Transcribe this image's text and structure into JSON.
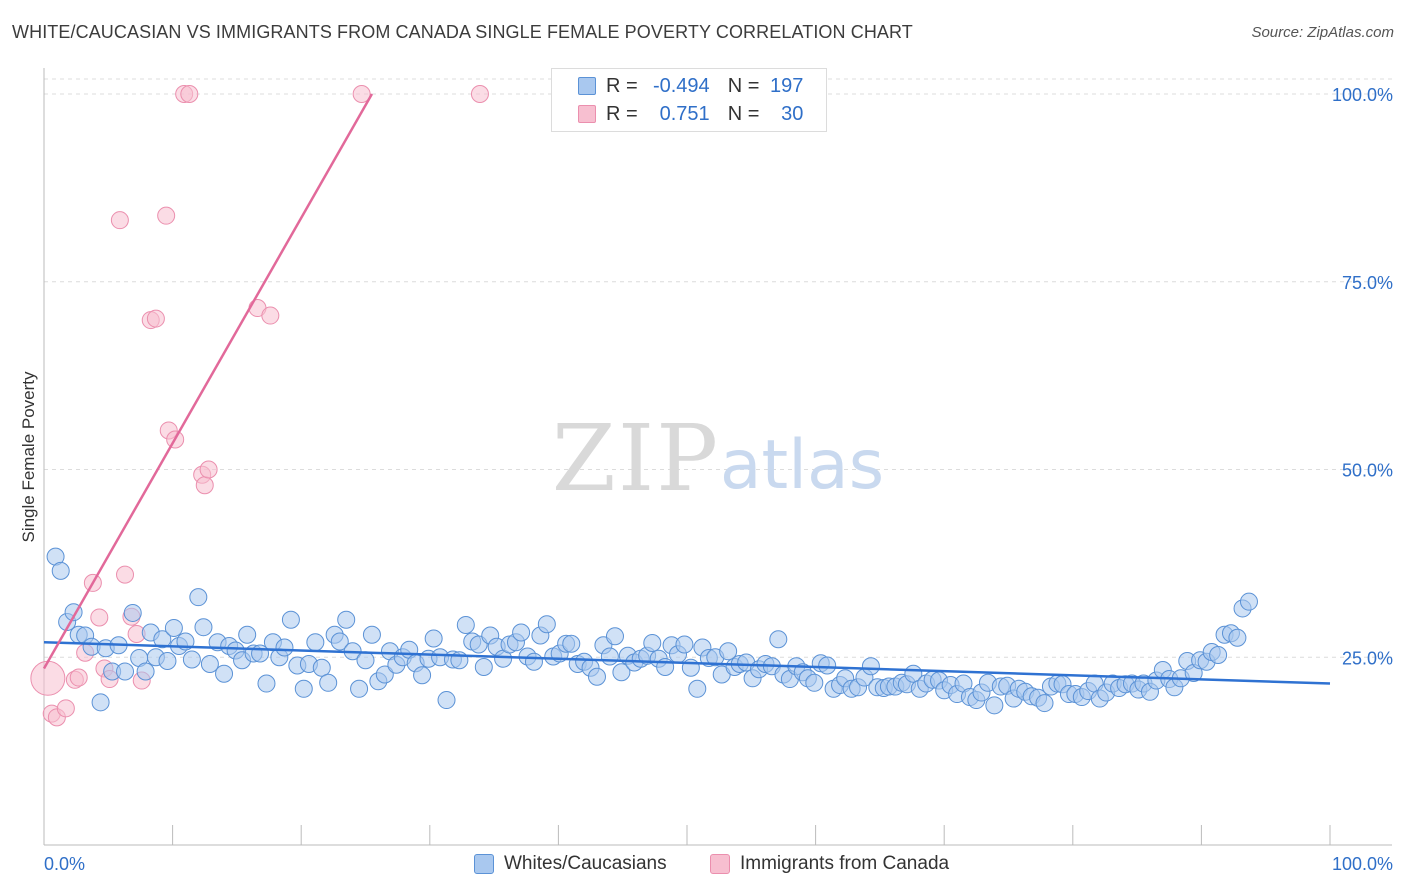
{
  "title": "WHITE/CAUCASIAN VS IMMIGRANTS FROM CANADA SINGLE FEMALE POVERTY CORRELATION CHART",
  "source": "Source: ZipAtlas.com",
  "watermark": {
    "zip": "ZIP",
    "atlas": "atlas"
  },
  "colors": {
    "blue_fill": "#a9c8ef",
    "blue_stroke": "#5b92d6",
    "blue_line": "#2f72d2",
    "pink_fill": "#f7bfd0",
    "pink_stroke": "#eb8fae",
    "pink_line": "#e2699a",
    "axis_text": "#2f6fc8"
  },
  "legend": {
    "r_label": "R =",
    "n_label": "N =",
    "rows": [
      {
        "name": "Whites/Caucasians",
        "r": "-0.494",
        "n": "197"
      },
      {
        "name": "Immigrants from Canada",
        "r": "0.751",
        "n": "30"
      }
    ]
  },
  "chart_data": {
    "type": "scatter",
    "title": "WHITE/CAUCASIAN VS IMMIGRANTS FROM CANADA SINGLE FEMALE POVERTY CORRELATION CHART",
    "xlabel": "",
    "ylabel": "Single Female Poverty",
    "xlim": [
      0,
      100
    ],
    "ylim": [
      0,
      102
    ],
    "x_tick_labels": [
      "0.0%",
      "100.0%"
    ],
    "y_ticks": [
      25,
      50,
      75,
      100
    ],
    "y_tick_labels": [
      "25.0%",
      "50.0%",
      "75.0%",
      "100.0%"
    ],
    "grid": true,
    "legend_position": "bottom-center",
    "series": [
      {
        "name": "Whites/Caucasians",
        "r": -0.494,
        "n": 197,
        "trend": {
          "x": [
            0,
            100
          ],
          "y": [
            27.0,
            21.5
          ]
        },
        "points": [
          [
            0.9,
            38.4
          ],
          [
            1.3,
            36.5
          ],
          [
            1.8,
            29.7
          ],
          [
            2.3,
            31
          ],
          [
            2.7,
            28
          ],
          [
            3.2,
            27.9
          ],
          [
            3.7,
            26.4
          ],
          [
            4.4,
            19
          ],
          [
            4.8,
            26.2
          ],
          [
            5.3,
            23.1
          ],
          [
            5.8,
            26.6
          ],
          [
            6.3,
            23.1
          ],
          [
            6.9,
            30.9
          ],
          [
            7.4,
            24.9
          ],
          [
            7.9,
            23.1
          ],
          [
            8.3,
            28.3
          ],
          [
            8.7,
            25
          ],
          [
            9.2,
            27.4
          ],
          [
            9.6,
            24.5
          ],
          [
            10.1,
            28.9
          ],
          [
            10.5,
            26.5
          ],
          [
            11,
            27.1
          ],
          [
            11.5,
            24.7
          ],
          [
            12,
            33
          ],
          [
            12.4,
            29
          ],
          [
            12.9,
            24.1
          ],
          [
            13.5,
            27
          ],
          [
            14,
            22.8
          ],
          [
            14.4,
            26.5
          ],
          [
            14.9,
            25.9
          ],
          [
            15.4,
            24.6
          ],
          [
            15.8,
            28
          ],
          [
            16.3,
            25.5
          ],
          [
            16.8,
            25.5
          ],
          [
            17.3,
            21.5
          ],
          [
            17.8,
            27
          ],
          [
            18.3,
            25
          ],
          [
            18.7,
            26.3
          ],
          [
            19.2,
            30
          ],
          [
            19.7,
            23.9
          ],
          [
            20.2,
            20.8
          ],
          [
            20.6,
            24.1
          ],
          [
            21.1,
            27
          ],
          [
            21.6,
            23.6
          ],
          [
            22.1,
            21.6
          ],
          [
            22.6,
            28
          ],
          [
            23,
            27.1
          ],
          [
            23.5,
            30
          ],
          [
            24,
            25.8
          ],
          [
            24.5,
            20.8
          ],
          [
            25,
            24.6
          ],
          [
            25.5,
            28
          ],
          [
            26,
            21.8
          ],
          [
            26.5,
            22.7
          ],
          [
            26.9,
            25.8
          ],
          [
            27.4,
            24
          ],
          [
            27.9,
            25
          ],
          [
            28.4,
            26
          ],
          [
            28.9,
            24.2
          ],
          [
            29.4,
            22.6
          ],
          [
            29.9,
            24.8
          ],
          [
            30.3,
            27.5
          ],
          [
            30.8,
            25
          ],
          [
            31.3,
            19.3
          ],
          [
            31.8,
            24.7
          ],
          [
            32.3,
            24.6
          ],
          [
            32.8,
            29.3
          ],
          [
            33.3,
            27.1
          ],
          [
            33.8,
            26.7
          ],
          [
            34.2,
            23.7
          ],
          [
            34.7,
            27.9
          ],
          [
            35.2,
            26.4
          ],
          [
            35.7,
            24.8
          ],
          [
            36.2,
            26.7
          ],
          [
            36.7,
            27
          ],
          [
            37.1,
            28.3
          ],
          [
            37.6,
            25.1
          ],
          [
            38.1,
            24.4
          ],
          [
            38.6,
            27.9
          ],
          [
            39.1,
            29.4
          ],
          [
            39.6,
            25.1
          ],
          [
            40.1,
            25.5
          ],
          [
            40.6,
            26.8
          ],
          [
            41,
            26.8
          ],
          [
            41.5,
            24.1
          ],
          [
            42,
            24.4
          ],
          [
            42.5,
            23.6
          ],
          [
            43,
            22.4
          ],
          [
            43.5,
            26.6
          ],
          [
            44,
            25.1
          ],
          [
            44.4,
            27.8
          ],
          [
            44.9,
            23
          ],
          [
            45.4,
            25.2
          ],
          [
            45.9,
            24.3
          ],
          [
            46.4,
            24.8
          ],
          [
            46.9,
            25.2
          ],
          [
            47.3,
            26.9
          ],
          [
            47.8,
            24.8
          ],
          [
            48.3,
            23.7
          ],
          [
            48.8,
            26.6
          ],
          [
            49.3,
            25.4
          ],
          [
            49.8,
            26.7
          ],
          [
            50.3,
            23.6
          ],
          [
            50.8,
            20.8
          ],
          [
            51.2,
            26.3
          ],
          [
            51.7,
            24.9
          ],
          [
            52.2,
            25
          ],
          [
            52.7,
            22.7
          ],
          [
            53.2,
            25.8
          ],
          [
            53.7,
            23.7
          ],
          [
            54.1,
            24.1
          ],
          [
            54.6,
            24.3
          ],
          [
            55.1,
            22.2
          ],
          [
            55.6,
            23.4
          ],
          [
            56.1,
            24.1
          ],
          [
            56.6,
            23.8
          ],
          [
            57.1,
            27.4
          ],
          [
            57.5,
            22.7
          ],
          [
            58,
            22.1
          ],
          [
            58.5,
            23.8
          ],
          [
            59,
            23
          ],
          [
            59.4,
            22.2
          ],
          [
            59.9,
            21.6
          ],
          [
            60.4,
            24.2
          ],
          [
            60.9,
            23.9
          ],
          [
            61.4,
            20.8
          ],
          [
            61.9,
            21.3
          ],
          [
            62.3,
            22.2
          ],
          [
            62.8,
            20.8
          ],
          [
            63.3,
            21
          ],
          [
            63.8,
            22.3
          ],
          [
            64.3,
            23.8
          ],
          [
            64.8,
            21
          ],
          [
            65.3,
            20.9
          ],
          [
            65.7,
            21.1
          ],
          [
            66.2,
            21.1
          ],
          [
            66.7,
            21.6
          ],
          [
            67.1,
            21.4
          ],
          [
            67.6,
            22.8
          ],
          [
            68.1,
            20.8
          ],
          [
            68.6,
            21.5
          ],
          [
            69.1,
            22
          ],
          [
            69.6,
            21.9
          ],
          [
            70,
            20.6
          ],
          [
            70.5,
            21.3
          ],
          [
            71,
            20.1
          ],
          [
            71.5,
            21.5
          ],
          [
            72,
            19.7
          ],
          [
            72.5,
            19.3
          ],
          [
            72.9,
            20.3
          ],
          [
            73.4,
            21.6
          ],
          [
            73.9,
            18.6
          ],
          [
            74.4,
            21.1
          ],
          [
            74.9,
            21.2
          ],
          [
            75.4,
            19.5
          ],
          [
            75.8,
            20.8
          ],
          [
            76.3,
            20.4
          ],
          [
            76.8,
            19.8
          ],
          [
            77.3,
            19.6
          ],
          [
            77.8,
            18.9
          ],
          [
            78.3,
            21.1
          ],
          [
            78.8,
            21.5
          ],
          [
            79.2,
            21.4
          ],
          [
            79.7,
            20.1
          ],
          [
            80.2,
            20.1
          ],
          [
            80.7,
            19.7
          ],
          [
            81.2,
            20.5
          ],
          [
            81.7,
            21.5
          ],
          [
            82.1,
            19.5
          ],
          [
            82.6,
            20.3
          ],
          [
            83.1,
            21.5
          ],
          [
            83.6,
            20.9
          ],
          [
            84.1,
            21.4
          ],
          [
            84.6,
            21.5
          ],
          [
            85.1,
            20.7
          ],
          [
            85.5,
            21.5
          ],
          [
            86,
            20.4
          ],
          [
            86.5,
            21.9
          ],
          [
            87,
            23.3
          ],
          [
            87.5,
            22.1
          ],
          [
            87.9,
            21
          ],
          [
            88.4,
            22.2
          ],
          [
            88.9,
            24.5
          ],
          [
            89.4,
            22.9
          ],
          [
            89.9,
            24.6
          ],
          [
            90.4,
            24.4
          ],
          [
            90.8,
            25.7
          ],
          [
            91.3,
            25.3
          ],
          [
            91.8,
            28
          ],
          [
            92.3,
            28.2
          ],
          [
            92.8,
            27.6
          ],
          [
            93.2,
            31.5
          ],
          [
            93.7,
            32.4
          ]
        ]
      },
      {
        "name": "Immigrants from Canada",
        "r": 0.751,
        "n": 30,
        "trend": {
          "x": [
            0,
            25.5
          ],
          "y": [
            23.5,
            100
          ]
        },
        "points": [
          [
            0.3,
            22.2
          ],
          [
            0.6,
            17.5
          ],
          [
            1.0,
            17
          ],
          [
            1.7,
            18.2
          ],
          [
            2.4,
            22
          ],
          [
            2.7,
            22.3
          ],
          [
            3.2,
            25.6
          ],
          [
            3.8,
            34.9
          ],
          [
            4.3,
            30.3
          ],
          [
            4.7,
            23.5
          ],
          [
            5.1,
            22.1
          ],
          [
            5.9,
            83.2
          ],
          [
            6.3,
            36
          ],
          [
            6.8,
            30.4
          ],
          [
            7.2,
            28.1
          ],
          [
            7.6,
            21.9
          ],
          [
            8.3,
            69.9
          ],
          [
            8.7,
            70.1
          ],
          [
            9.5,
            83.8
          ],
          [
            9.7,
            55.2
          ],
          [
            10.2,
            54
          ],
          [
            10.9,
            100
          ],
          [
            11.3,
            100
          ],
          [
            12.3,
            49.3
          ],
          [
            12.5,
            47.9
          ],
          [
            12.8,
            50
          ],
          [
            16.6,
            71.5
          ],
          [
            17.6,
            70.5
          ],
          [
            24.7,
            100
          ],
          [
            33.9,
            100
          ]
        ]
      }
    ]
  }
}
